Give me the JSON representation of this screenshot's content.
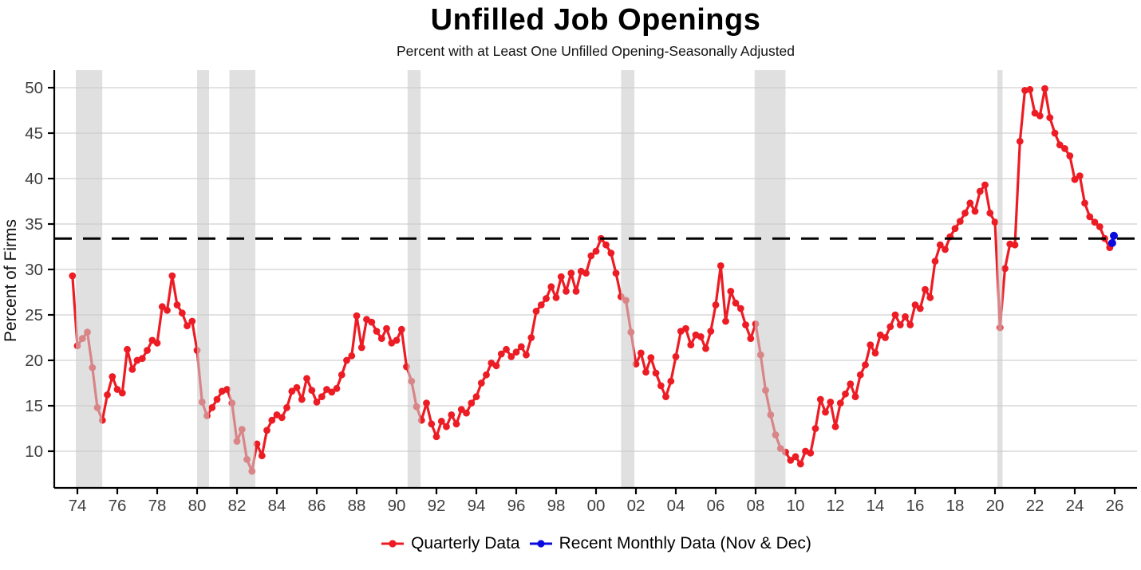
{
  "title": "Unfilled Job Openings",
  "subtitle": "Percent with at Least One Unfilled Opening-Seasonally Adjusted",
  "y_axis_label": "Percent of Firms",
  "legend": {
    "quarterly_label": "Quarterly Data",
    "monthly_label": "Recent Monthly Data (Nov & Dec)"
  },
  "colors": {
    "quarterly_red": "#ED1C24",
    "monthly_blue": "#0B0BE0",
    "recession_band": "rgba(203,203,203,0.6)",
    "gridline": "#d9d9d9",
    "axis": "#000000",
    "tick_label": "#3f3f3f",
    "dashed_line": "#000000"
  },
  "chart_data": {
    "type": "line",
    "title": "Unfilled Job Openings",
    "subtitle": "Percent with at Least One Unfilled Opening-Seasonally Adjusted",
    "xlabel": "",
    "ylabel": "Percent of Firms",
    "grid": "horizontal",
    "legend_position": "bottom",
    "x_axis": {
      "tick_years": [
        1974,
        1976,
        1978,
        1980,
        1982,
        1984,
        1986,
        1988,
        1990,
        1992,
        1994,
        1996,
        1998,
        2000,
        2002,
        2004,
        2006,
        2008,
        2010,
        2012,
        2014,
        2016,
        2018,
        2020,
        2022,
        2024,
        2026
      ],
      "tick_labels": [
        "74",
        "76",
        "78",
        "80",
        "82",
        "84",
        "86",
        "88",
        "90",
        "92",
        "94",
        "96",
        "98",
        "00",
        "02",
        "04",
        "06",
        "08",
        "10",
        "12",
        "14",
        "16",
        "18",
        "20",
        "22",
        "24",
        "26"
      ]
    },
    "y_axis": {
      "ticks": [
        10,
        15,
        20,
        25,
        30,
        35,
        40,
        45,
        50
      ],
      "tick_labels": [
        "10",
        "15",
        "20",
        "25",
        "30",
        "35",
        "40",
        "45",
        "50"
      ],
      "range_shown": [
        6,
        52
      ]
    },
    "dashed_reference_value": 33.4,
    "recession_bands": [
      [
        1973.92,
        1975.25
      ],
      [
        1980.0,
        1980.6
      ],
      [
        1981.62,
        1982.92
      ],
      [
        1990.55,
        1991.2
      ],
      [
        2001.25,
        2001.92
      ],
      [
        2007.95,
        2009.5
      ],
      [
        2020.12,
        2020.38
      ]
    ],
    "series": [
      {
        "name": "Quarterly Data",
        "type": "line+markers",
        "start_year": 1973.75,
        "step_years": 0.25,
        "values": [
          29.3,
          21.6,
          22.4,
          23.1,
          19.2,
          14.8,
          13.4,
          16.2,
          18.2,
          16.8,
          16.4,
          21.2,
          19.0,
          20.0,
          20.2,
          21.1,
          22.2,
          21.9,
          25.9,
          25.5,
          29.3,
          26.1,
          25.2,
          23.8,
          24.3,
          21.1,
          15.4,
          13.9,
          14.8,
          15.7,
          16.6,
          16.8,
          15.3,
          11.1,
          12.4,
          9.1,
          7.8,
          10.8,
          9.5,
          12.3,
          13.4,
          14.0,
          13.7,
          14.8,
          16.6,
          17.0,
          15.7,
          18.0,
          16.7,
          15.4,
          16.0,
          16.8,
          16.5,
          16.9,
          18.4,
          20.0,
          20.5,
          24.9,
          21.4,
          24.5,
          24.2,
          23.2,
          22.4,
          23.5,
          21.9,
          22.2,
          23.4,
          19.3,
          17.7,
          14.9,
          13.4,
          15.3,
          13.0,
          11.6,
          13.3,
          12.7,
          14.0,
          13.0,
          14.6,
          14.2,
          15.3,
          16.0,
          17.5,
          18.4,
          19.7,
          19.4,
          20.7,
          21.2,
          20.4,
          20.9,
          21.5,
          20.6,
          22.5,
          25.4,
          26.1,
          26.8,
          28.1,
          26.9,
          29.2,
          27.6,
          29.6,
          27.6,
          29.8,
          29.6,
          31.5,
          32.0,
          33.4,
          32.7,
          31.8,
          29.6,
          27.0,
          26.6,
          23.1,
          19.6,
          20.8,
          18.7,
          20.3,
          18.6,
          17.2,
          16.0,
          17.7,
          20.4,
          23.2,
          23.5,
          21.7,
          22.8,
          22.6,
          21.3,
          23.2,
          26.1,
          30.4,
          24.3,
          27.6,
          26.3,
          25.7,
          23.9,
          22.4,
          24.0,
          20.6,
          16.7,
          14.0,
          11.8,
          10.3,
          9.9,
          9.0,
          9.4,
          8.6,
          10.0,
          9.8,
          12.5,
          15.7,
          14.3,
          15.4,
          12.7,
          15.3,
          16.3,
          17.4,
          16.0,
          18.4,
          19.5,
          21.7,
          20.8,
          22.8,
          22.5,
          23.7,
          25.0,
          23.9,
          24.8,
          23.9,
          26.1,
          25.7,
          27.8,
          26.9,
          30.9,
          32.7,
          32.2,
          33.6,
          34.5,
          35.3,
          36.2,
          37.3,
          36.4,
          38.6,
          39.3,
          36.2,
          35.2,
          23.6,
          30.1,
          32.8,
          32.7,
          44.1,
          49.7,
          49.8,
          47.2,
          46.9,
          49.9,
          46.7,
          45.0,
          43.7,
          43.3,
          42.5,
          39.9,
          40.3,
          37.3,
          35.8,
          35.2,
          34.7,
          33.4,
          32.4
        ]
      },
      {
        "name": "Recent Monthly Data (Nov & Dec)",
        "type": "line+markers",
        "points": [
          {
            "x": 2025.875,
            "y": 32.9,
            "label": "Nov 2025"
          },
          {
            "x": 2025.958,
            "y": 33.7,
            "label": "Dec 2025"
          }
        ]
      }
    ]
  }
}
